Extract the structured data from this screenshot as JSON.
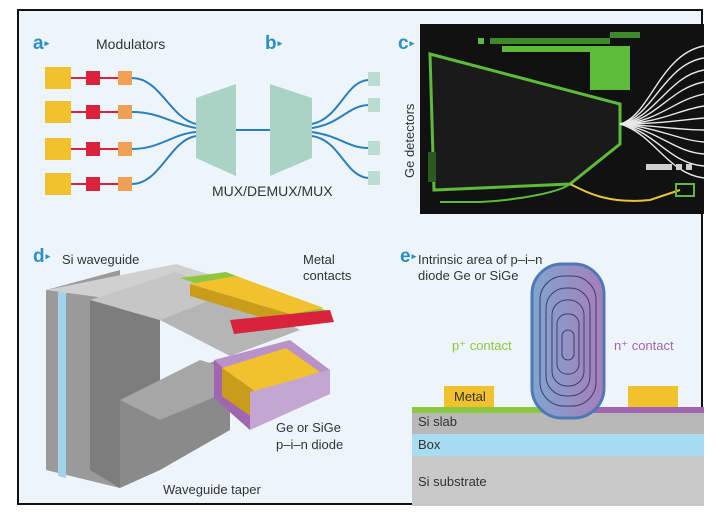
{
  "panels": {
    "a": {
      "letter": "a",
      "label": "Modulators"
    },
    "b": {
      "letter": "b",
      "mux_label": "MUX/DEMUX/MUX",
      "detectors_label": "Ge detectors"
    },
    "c": {
      "letter": "c"
    },
    "d": {
      "letter": "d",
      "si_waveguide": "Si waveguide",
      "metal_contacts_1": "Metal",
      "metal_contacts_2": "contacts",
      "diode_1": "Ge or SiGe",
      "diode_2": "p–i–n diode",
      "taper": "Waveguide taper"
    },
    "e": {
      "letter": "e",
      "intrinsic_1": "Intrinsic area of p–i–n",
      "intrinsic_2": "diode Ge or SiGe",
      "p_contact": "p⁺ contact",
      "n_contact": "n⁺ contact",
      "metal": "Metal",
      "si_slab": "Si slab",
      "box": "Box",
      "si_substrate": "Si substrate"
    }
  },
  "colors": {
    "accent": "#2a8fc8",
    "modulator_yellow": "#f2c12e",
    "modulator_red": "#d9233c",
    "modulator_orange": "#f0a055",
    "waveguide_blue": "#2a7fc0",
    "mux_green": "#a9d3c4",
    "chip_green": "#5dbb3a",
    "p_green": "#8dc63f",
    "n_purple": "#a066b0"
  }
}
